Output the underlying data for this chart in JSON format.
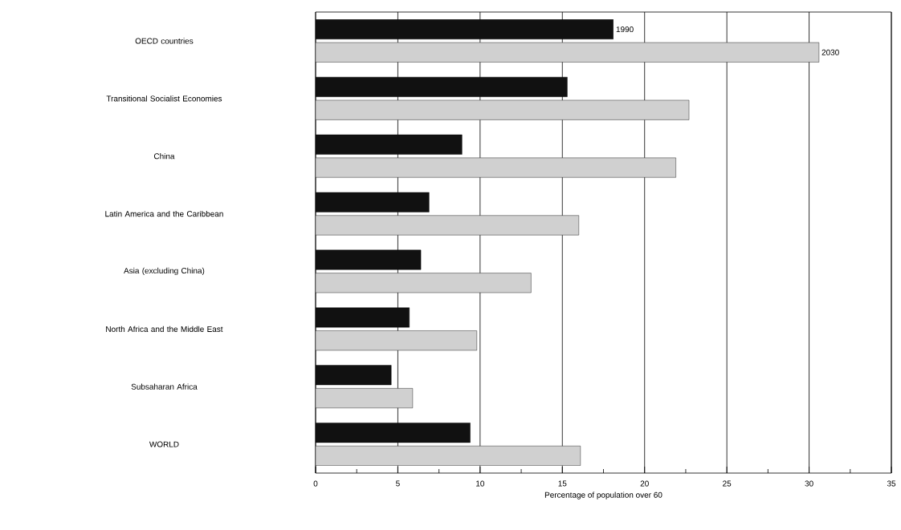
{
  "chart_data": {
    "type": "bar",
    "orientation": "horizontal",
    "xlabel": "Percentage of population over 60",
    "categories": [
      "OECD countries",
      "Transitional Socialist Economies",
      "China",
      "Latin America and the Caribbean",
      "Asia (excluding China)",
      "North Africa and the Middle East",
      "Subsaharan Africa",
      "WORLD"
    ],
    "series": [
      {
        "name": "1990",
        "color": "#111111",
        "values": [
          18.1,
          15.3,
          8.9,
          6.9,
          6.4,
          5.7,
          4.6,
          9.4
        ]
      },
      {
        "name": "2030",
        "color": "#d0d0d0",
        "values": [
          30.6,
          22.7,
          21.9,
          16.0,
          13.1,
          9.8,
          5.9,
          16.1
        ]
      }
    ],
    "xlim": [
      0,
      35
    ],
    "xticks": [
      0,
      {
        "value": 2.5,
        "label": null
      },
      5,
      {
        "value": 7.5,
        "label": null
      },
      10,
      {
        "value": 12.5,
        "label": null
      },
      15,
      {
        "value": 17.5,
        "label": null
      },
      20,
      {
        "value": 22.5,
        "label": null
      },
      25,
      {
        "value": 27.5,
        "label": null
      },
      30,
      {
        "value": 32.5,
        "label": null
      },
      35
    ],
    "grid": "x",
    "legend": false
  }
}
